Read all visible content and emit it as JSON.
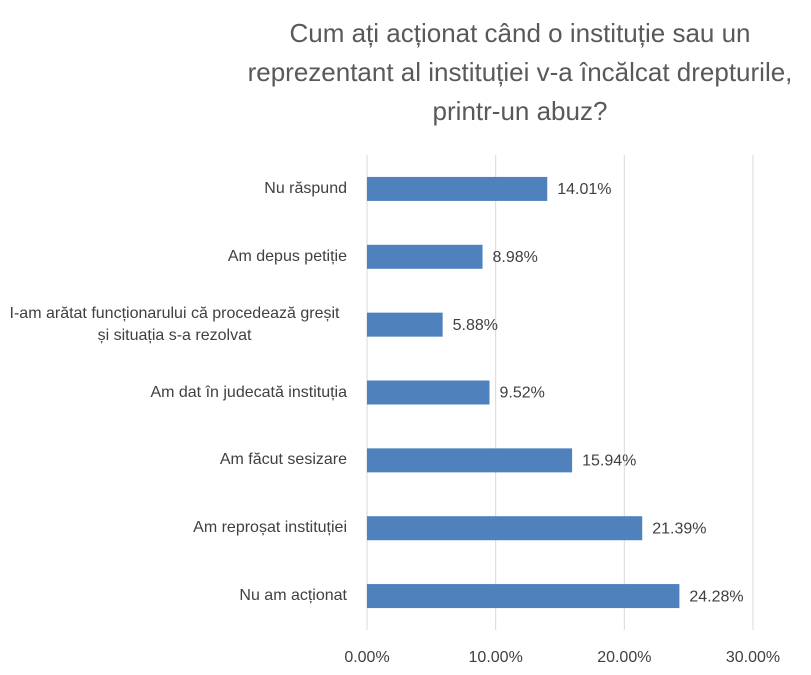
{
  "chart_data": {
    "type": "bar",
    "orientation": "horizontal",
    "title": "Cum ați acționat când o instituție sau un reprezentant al instituției v-a încălcat drepturile, printr-un abuz?",
    "categories": [
      "Nu răspund",
      "Am depus petiție",
      "I-am arătat funcționarului că procedează greșit și situația s-a rezolvat",
      "Am dat în judecată instituția",
      "Am făcut sesizare",
      "Am reproșat instituției",
      "Nu am acționat"
    ],
    "values": [
      14.01,
      8.98,
      5.88,
      9.52,
      15.94,
      21.39,
      24.28
    ],
    "value_labels": [
      "14.01%",
      "8.98%",
      "5.88%",
      "9.52%",
      "15.94%",
      "21.39%",
      "24.28%"
    ],
    "color": "#4f81bd",
    "xlim": [
      0,
      30
    ],
    "xticks": [
      {
        "value": 0,
        "label": "0.00%"
      },
      {
        "value": 10,
        "label": "10.00%"
      },
      {
        "value": 20,
        "label": "20.00%"
      },
      {
        "value": 30,
        "label": "30.00%"
      }
    ],
    "grid": true
  }
}
